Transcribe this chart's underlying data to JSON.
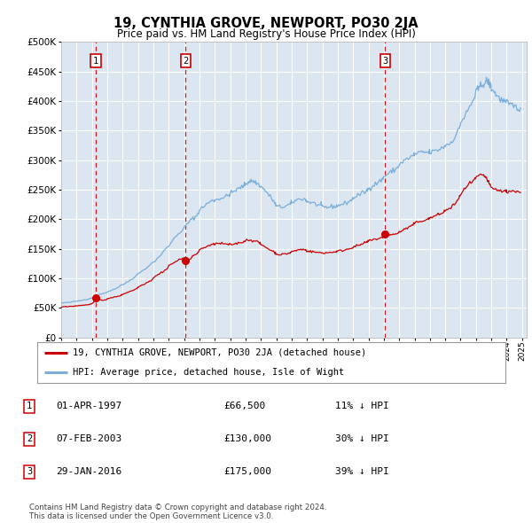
{
  "title": "19, CYNTHIA GROVE, NEWPORT, PO30 2JA",
  "subtitle": "Price paid vs. HM Land Registry's House Price Index (HPI)",
  "footer": "Contains HM Land Registry data © Crown copyright and database right 2024.\nThis data is licensed under the Open Government Licence v3.0.",
  "legend_line1": "19, CYNTHIA GROVE, NEWPORT, PO30 2JA (detached house)",
  "legend_line2": "HPI: Average price, detached house, Isle of Wight",
  "sales": [
    {
      "num": 1,
      "date": "01-APR-1997",
      "price": 66500,
      "pct": "11%",
      "dir": "↓"
    },
    {
      "num": 2,
      "date": "07-FEB-2003",
      "price": 130000,
      "pct": "30%",
      "dir": "↓"
    },
    {
      "num": 3,
      "date": "29-JAN-2016",
      "price": 175000,
      "pct": "39%",
      "dir": "↓"
    }
  ],
  "sale_dates_decimal": [
    1997.25,
    2003.1,
    2016.08
  ],
  "sale_prices": [
    66500,
    130000,
    175000
  ],
  "red_color": "#cc0000",
  "blue_color": "#7aadda",
  "bg_color": "#dce6f1",
  "grid_color": "#ffffff",
  "ylim": [
    0,
    500000
  ],
  "yticks": [
    0,
    50000,
    100000,
    150000,
    200000,
    250000,
    300000,
    350000,
    400000,
    450000,
    500000
  ],
  "xlim_start": 1995.0,
  "xlim_end": 2025.3,
  "hpi_annual": [
    [
      1995.0,
      58000
    ],
    [
      1995.5,
      59000
    ],
    [
      1996.0,
      61000
    ],
    [
      1996.5,
      63500
    ],
    [
      1997.0,
      67000
    ],
    [
      1997.5,
      72000
    ],
    [
      1998.0,
      77000
    ],
    [
      1998.5,
      82000
    ],
    [
      1999.0,
      89000
    ],
    [
      1999.5,
      97000
    ],
    [
      2000.0,
      107000
    ],
    [
      2000.5,
      117000
    ],
    [
      2001.0,
      127000
    ],
    [
      2001.5,
      140000
    ],
    [
      2002.0,
      155000
    ],
    [
      2002.5,
      172000
    ],
    [
      2003.0,
      185000
    ],
    [
      2003.2,
      192000
    ],
    [
      2003.5,
      200000
    ],
    [
      2003.8,
      205000
    ],
    [
      2004.0,
      215000
    ],
    [
      2004.3,
      222000
    ],
    [
      2004.6,
      228000
    ],
    [
      2004.9,
      232000
    ],
    [
      2005.0,
      232000
    ],
    [
      2005.3,
      235000
    ],
    [
      2005.6,
      237000
    ],
    [
      2005.9,
      240000
    ],
    [
      2006.0,
      243000
    ],
    [
      2006.3,
      248000
    ],
    [
      2006.6,
      252000
    ],
    [
      2006.9,
      257000
    ],
    [
      2007.0,
      260000
    ],
    [
      2007.2,
      263000
    ],
    [
      2007.4,
      265000
    ],
    [
      2007.6,
      263000
    ],
    [
      2007.8,
      260000
    ],
    [
      2008.0,
      255000
    ],
    [
      2008.3,
      248000
    ],
    [
      2008.6,
      238000
    ],
    [
      2008.9,
      228000
    ],
    [
      2009.0,
      222000
    ],
    [
      2009.3,
      220000
    ],
    [
      2009.6,
      222000
    ],
    [
      2009.9,
      225000
    ],
    [
      2010.0,
      228000
    ],
    [
      2010.3,
      232000
    ],
    [
      2010.6,
      235000
    ],
    [
      2010.9,
      233000
    ],
    [
      2011.0,
      230000
    ],
    [
      2011.3,
      228000
    ],
    [
      2011.6,
      225000
    ],
    [
      2011.9,
      223000
    ],
    [
      2012.0,
      221000
    ],
    [
      2012.3,
      220000
    ],
    [
      2012.6,
      221000
    ],
    [
      2012.9,
      222000
    ],
    [
      2013.0,
      223000
    ],
    [
      2013.3,
      225000
    ],
    [
      2013.6,
      228000
    ],
    [
      2013.9,
      232000
    ],
    [
      2014.0,
      236000
    ],
    [
      2014.3,
      240000
    ],
    [
      2014.6,
      244000
    ],
    [
      2014.9,
      248000
    ],
    [
      2015.0,
      252000
    ],
    [
      2015.3,
      257000
    ],
    [
      2015.6,
      262000
    ],
    [
      2015.9,
      267000
    ],
    [
      2016.0,
      272000
    ],
    [
      2016.3,
      277000
    ],
    [
      2016.6,
      282000
    ],
    [
      2016.9,
      287000
    ],
    [
      2017.0,
      292000
    ],
    [
      2017.3,
      298000
    ],
    [
      2017.6,
      303000
    ],
    [
      2017.9,
      307000
    ],
    [
      2018.0,
      310000
    ],
    [
      2018.3,
      312000
    ],
    [
      2018.6,
      313000
    ],
    [
      2018.9,
      313000
    ],
    [
      2019.0,
      313000
    ],
    [
      2019.3,
      315000
    ],
    [
      2019.6,
      318000
    ],
    [
      2019.9,
      322000
    ],
    [
      2020.0,
      325000
    ],
    [
      2020.3,
      328000
    ],
    [
      2020.6,
      338000
    ],
    [
      2020.9,
      352000
    ],
    [
      2021.0,
      363000
    ],
    [
      2021.3,
      375000
    ],
    [
      2021.6,
      390000
    ],
    [
      2021.9,
      405000
    ],
    [
      2022.0,
      415000
    ],
    [
      2022.2,
      422000
    ],
    [
      2022.4,
      428000
    ],
    [
      2022.6,
      432000
    ],
    [
      2022.7,
      434000
    ],
    [
      2022.8,
      432000
    ],
    [
      2022.9,
      428000
    ],
    [
      2023.0,
      422000
    ],
    [
      2023.2,
      415000
    ],
    [
      2023.4,
      408000
    ],
    [
      2023.6,
      403000
    ],
    [
      2023.8,
      399000
    ],
    [
      2024.0,
      396000
    ],
    [
      2024.3,
      393000
    ],
    [
      2024.6,
      390000
    ],
    [
      2024.9,
      388000
    ]
  ],
  "prop_line": [
    [
      1995.0,
      51000
    ],
    [
      1995.3,
      52000
    ],
    [
      1995.6,
      52500
    ],
    [
      1995.9,
      53000
    ],
    [
      1996.0,
      53500
    ],
    [
      1996.3,
      54000
    ],
    [
      1996.6,
      55000
    ],
    [
      1996.9,
      56000
    ],
    [
      1997.0,
      57000
    ],
    [
      1997.1,
      59000
    ],
    [
      1997.25,
      66500
    ],
    [
      1997.4,
      64000
    ],
    [
      1997.6,
      63000
    ],
    [
      1997.9,
      63500
    ],
    [
      1998.0,
      65000
    ],
    [
      1998.3,
      67000
    ],
    [
      1998.6,
      69000
    ],
    [
      1998.9,
      71000
    ],
    [
      1999.0,
      73000
    ],
    [
      1999.3,
      76000
    ],
    [
      1999.6,
      79000
    ],
    [
      1999.9,
      82000
    ],
    [
      2000.0,
      85000
    ],
    [
      2000.3,
      89000
    ],
    [
      2000.6,
      93000
    ],
    [
      2000.9,
      97000
    ],
    [
      2001.0,
      101000
    ],
    [
      2001.3,
      106000
    ],
    [
      2001.6,
      111000
    ],
    [
      2001.9,
      116000
    ],
    [
      2002.0,
      121000
    ],
    [
      2002.3,
      126000
    ],
    [
      2002.6,
      130000
    ],
    [
      2002.9,
      133000
    ],
    [
      2003.0,
      136000
    ],
    [
      2003.1,
      130000
    ],
    [
      2003.2,
      128000
    ],
    [
      2003.4,
      132000
    ],
    [
      2003.6,
      138000
    ],
    [
      2003.9,
      143000
    ],
    [
      2004.0,
      148000
    ],
    [
      2004.3,
      152000
    ],
    [
      2004.6,
      155000
    ],
    [
      2004.9,
      157000
    ],
    [
      2005.0,
      158000
    ],
    [
      2005.3,
      159000
    ],
    [
      2005.6,
      158000
    ],
    [
      2005.9,
      157000
    ],
    [
      2006.0,
      157000
    ],
    [
      2006.3,
      158000
    ],
    [
      2006.6,
      160000
    ],
    [
      2006.9,
      162000
    ],
    [
      2007.0,
      164000
    ],
    [
      2007.3,
      165000
    ],
    [
      2007.6,
      163000
    ],
    [
      2007.9,
      160000
    ],
    [
      2008.0,
      157000
    ],
    [
      2008.3,
      153000
    ],
    [
      2008.6,
      148000
    ],
    [
      2008.9,
      144000
    ],
    [
      2009.0,
      141000
    ],
    [
      2009.3,
      140000
    ],
    [
      2009.6,
      141000
    ],
    [
      2009.9,
      143000
    ],
    [
      2010.0,
      145000
    ],
    [
      2010.3,
      147000
    ],
    [
      2010.6,
      149000
    ],
    [
      2010.9,
      148000
    ],
    [
      2011.0,
      146000
    ],
    [
      2011.3,
      145000
    ],
    [
      2011.6,
      144000
    ],
    [
      2011.9,
      143000
    ],
    [
      2012.0,
      143000
    ],
    [
      2012.3,
      143000
    ],
    [
      2012.6,
      144000
    ],
    [
      2012.9,
      145000
    ],
    [
      2013.0,
      146000
    ],
    [
      2013.3,
      147000
    ],
    [
      2013.6,
      149000
    ],
    [
      2013.9,
      151000
    ],
    [
      2014.0,
      153000
    ],
    [
      2014.3,
      155000
    ],
    [
      2014.6,
      158000
    ],
    [
      2014.9,
      161000
    ],
    [
      2015.0,
      163000
    ],
    [
      2015.3,
      165000
    ],
    [
      2015.6,
      167000
    ],
    [
      2015.9,
      169000
    ],
    [
      2016.0,
      171000
    ],
    [
      2016.08,
      175000
    ],
    [
      2016.2,
      173000
    ],
    [
      2016.4,
      173000
    ],
    [
      2016.6,
      174000
    ],
    [
      2016.9,
      176000
    ],
    [
      2017.0,
      178000
    ],
    [
      2017.3,
      182000
    ],
    [
      2017.6,
      186000
    ],
    [
      2017.9,
      190000
    ],
    [
      2018.0,
      193000
    ],
    [
      2018.3,
      196000
    ],
    [
      2018.6,
      198000
    ],
    [
      2018.9,
      200000
    ],
    [
      2019.0,
      202000
    ],
    [
      2019.3,
      205000
    ],
    [
      2019.6,
      208000
    ],
    [
      2019.9,
      212000
    ],
    [
      2020.0,
      215000
    ],
    [
      2020.3,
      218000
    ],
    [
      2020.6,
      225000
    ],
    [
      2020.9,
      235000
    ],
    [
      2021.0,
      243000
    ],
    [
      2021.3,
      252000
    ],
    [
      2021.6,
      260000
    ],
    [
      2021.9,
      266000
    ],
    [
      2022.0,
      270000
    ],
    [
      2022.2,
      273000
    ],
    [
      2022.4,
      275000
    ],
    [
      2022.6,
      272000
    ],
    [
      2022.7,
      268000
    ],
    [
      2022.8,
      263000
    ],
    [
      2022.9,
      258000
    ],
    [
      2023.0,
      253000
    ],
    [
      2023.3,
      250000
    ],
    [
      2023.6,
      248000
    ],
    [
      2023.9,
      247000
    ],
    [
      2024.0,
      247000
    ],
    [
      2024.3,
      248000
    ],
    [
      2024.6,
      247000
    ],
    [
      2024.9,
      245000
    ]
  ]
}
